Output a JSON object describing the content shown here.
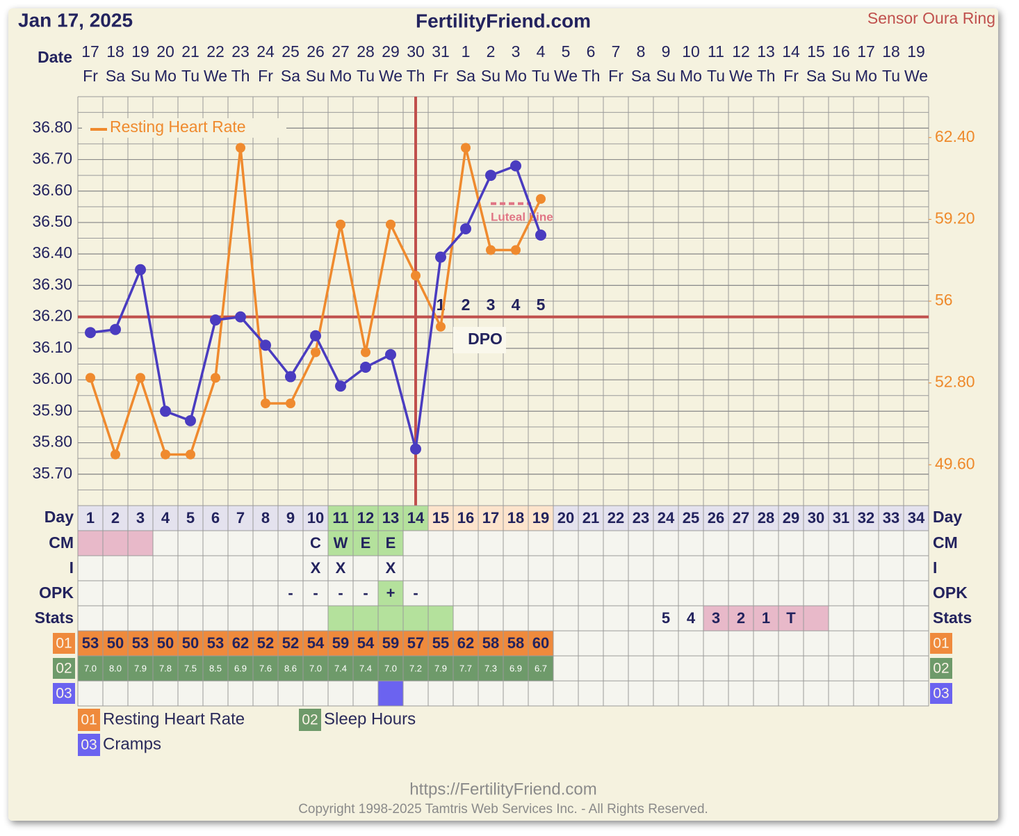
{
  "header": {
    "date": "Jan 17, 2025",
    "site": "FertilityFriend.com",
    "sensor": "Sensor Oura Ring"
  },
  "chart_data": {
    "type": "line",
    "date_label": "Date",
    "categories": [
      "17",
      "18",
      "19",
      "20",
      "21",
      "22",
      "23",
      "24",
      "25",
      "26",
      "27",
      "28",
      "29",
      "30",
      "31",
      "1",
      "2",
      "3",
      "4",
      "5",
      "6",
      "7",
      "8",
      "9",
      "10",
      "11",
      "12",
      "13",
      "14",
      "15",
      "16",
      "17",
      "18",
      "19"
    ],
    "weekdays": [
      "Fr",
      "Sa",
      "Su",
      "Mo",
      "Tu",
      "We",
      "Th",
      "Fr",
      "Sa",
      "Su",
      "Mo",
      "Tu",
      "We",
      "Th",
      "Fr",
      "Sa",
      "Su",
      "Mo",
      "Tu",
      "We",
      "Th",
      "Fr",
      "Sa",
      "Su",
      "Mo",
      "Tu",
      "We",
      "Th",
      "Fr",
      "Sa",
      "Su",
      "Mo",
      "Tu",
      "We"
    ],
    "ylim": [
      35.6,
      36.9
    ],
    "yticks": [
      {
        "value": 35.7,
        "label": "35.70"
      },
      {
        "value": 35.8,
        "label": "35.80"
      },
      {
        "value": 35.9,
        "label": "35.90"
      },
      {
        "value": 36.0,
        "label": "36.00"
      },
      {
        "value": 36.1,
        "label": "36.10"
      },
      {
        "value": 36.2,
        "label": "36.20"
      },
      {
        "value": 36.3,
        "label": "36.30"
      },
      {
        "value": 36.4,
        "label": "36.40"
      },
      {
        "value": 36.5,
        "label": "36.50"
      },
      {
        "value": 36.6,
        "label": "36.60"
      },
      {
        "value": 36.7,
        "label": "36.70"
      },
      {
        "value": 36.8,
        "label": "36.80"
      }
    ],
    "y2lim": [
      48,
      64
    ],
    "y2ticks": [
      {
        "value": 49.6,
        "label": "49.60"
      },
      {
        "value": 52.8,
        "label": "52.80"
      },
      56,
      {
        "value": 59.2,
        "label": "59.20"
      },
      {
        "value": 62.4,
        "label": "62.40"
      }
    ],
    "grid": true,
    "series": [
      {
        "color": "#4a3cc0",
        "values": [
          36.15,
          36.16,
          36.35,
          35.9,
          35.87,
          36.19,
          36.2,
          36.11,
          36.01,
          36.14,
          35.98,
          36.04,
          36.08,
          35.78,
          36.39,
          36.48,
          36.65,
          36.68,
          36.46,
          null,
          null,
          null,
          null,
          null,
          null,
          null,
          null,
          null,
          null,
          null,
          null,
          null,
          null,
          null
        ]
      },
      {
        "name": "Resting Heart Rate",
        "color": "#ef8a2e",
        "axis": "y2",
        "values": [
          53,
          50,
          53,
          50,
          50,
          53,
          62,
          52,
          52,
          54,
          59,
          54,
          59,
          57,
          55,
          62,
          58,
          58,
          60,
          null,
          null,
          null,
          null,
          null,
          null,
          null,
          null,
          null,
          null,
          null,
          null,
          null,
          null,
          null
        ]
      }
    ],
    "coverline": 36.2,
    "coverline_color": "#c0504d",
    "ovulation_day": 14,
    "luteal_line": {
      "label": "Luteal Line",
      "value": 36.56,
      "days": [
        17,
        18
      ],
      "color": "#e07585"
    },
    "dpo": {
      "label": "DPO",
      "days": [
        15,
        16,
        17,
        18,
        19
      ],
      "values": [
        1,
        2,
        3,
        4,
        5
      ]
    }
  },
  "table": {
    "day_label": "Day",
    "days": [
      1,
      2,
      3,
      4,
      5,
      6,
      7,
      8,
      9,
      10,
      11,
      12,
      13,
      14,
      15,
      16,
      17,
      18,
      19,
      20,
      21,
      22,
      23,
      24,
      25,
      26,
      27,
      28,
      29,
      30,
      31,
      32,
      33,
      34
    ],
    "day_fills": [
      {
        "from": 1,
        "to": 10,
        "color": "#e4e2ee"
      },
      {
        "from": 11,
        "to": 14,
        "color": "#b4e19c"
      },
      {
        "from": 15,
        "to": 19,
        "color": "#fde4cc"
      },
      {
        "from": 20,
        "to": 34,
        "color": "#e4e2ee"
      }
    ],
    "rows": [
      {
        "label": "CM",
        "cells": [
          null,
          null,
          null,
          null,
          null,
          null,
          null,
          null,
          null,
          "C",
          "W",
          "E",
          "E",
          null,
          null,
          null,
          null,
          null,
          null,
          null,
          null,
          null,
          null,
          null,
          null,
          null,
          null,
          null,
          null,
          null,
          null,
          null,
          null,
          null
        ],
        "fills": [
          {
            "from": 1,
            "to": 3,
            "color": "#e8b9c9"
          },
          {
            "from": 11,
            "to": 13,
            "color": "#b4e19c"
          }
        ]
      },
      {
        "label": "I",
        "cells": [
          null,
          null,
          null,
          null,
          null,
          null,
          null,
          null,
          null,
          "X",
          "X",
          null,
          "X",
          null,
          null,
          null,
          null,
          null,
          null,
          null,
          null,
          null,
          null,
          null,
          null,
          null,
          null,
          null,
          null,
          null,
          null,
          null,
          null,
          null
        ],
        "fills": []
      },
      {
        "label": "OPK",
        "cells": [
          null,
          null,
          null,
          null,
          null,
          null,
          null,
          null,
          "-",
          "-",
          "-",
          "-",
          "+",
          "-",
          null,
          null,
          null,
          null,
          null,
          null,
          null,
          null,
          null,
          null,
          null,
          null,
          null,
          null,
          null,
          null,
          null,
          null,
          null,
          null
        ],
        "fills": [
          {
            "from": 13,
            "to": 13,
            "color": "#b4e19c"
          }
        ]
      },
      {
        "label": "Stats",
        "cells": [
          null,
          null,
          null,
          null,
          null,
          null,
          null,
          null,
          null,
          null,
          null,
          null,
          null,
          null,
          null,
          null,
          null,
          null,
          null,
          null,
          null,
          null,
          null,
          "5",
          "4",
          "3",
          "2",
          "1",
          "T",
          null,
          null,
          null,
          null,
          null
        ],
        "fills": [
          {
            "from": 11,
            "to": 15,
            "color": "#b4e19c"
          },
          {
            "from": 26,
            "to": 30,
            "color": "#e8b9c9"
          }
        ]
      },
      {
        "label": "01",
        "label_color": "#ef8a3c",
        "cells": [
          53,
          50,
          53,
          50,
          50,
          53,
          62,
          52,
          52,
          54,
          59,
          54,
          59,
          57,
          55,
          62,
          58,
          58,
          60,
          null,
          null,
          null,
          null,
          null,
          null,
          null,
          null,
          null,
          null,
          null,
          null,
          null,
          null,
          null
        ],
        "fills": [
          {
            "from": 1,
            "to": 19,
            "color": "#ef8a3c"
          }
        ]
      },
      {
        "label": "02",
        "label_color": "#6e9a6a",
        "cells": [
          "7.0",
          "8.0",
          "7.9",
          "7.8",
          "7.5",
          "8.5",
          "6.9",
          "7.6",
          "8.6",
          "7.0",
          "7.4",
          "7.4",
          "7.0",
          "7.2",
          "7.9",
          "7.7",
          "7.3",
          "6.9",
          "6.7",
          null,
          null,
          null,
          null,
          null,
          null,
          null,
          null,
          null,
          null,
          null,
          null,
          null,
          null,
          null
        ],
        "fills": [
          {
            "from": 1,
            "to": 19,
            "color": "#6e9a6a"
          }
        ]
      },
      {
        "label": "03",
        "label_color": "#6b63f0",
        "cells": [],
        "fills": [
          {
            "from": 13,
            "to": 13,
            "color": "#6b63f0"
          }
        ]
      }
    ],
    "legend": [
      {
        "code": "01",
        "label": "Resting Heart Rate",
        "color": "#ef8a3c"
      },
      {
        "code": "02",
        "label": "Sleep Hours",
        "color": "#6e9a6a"
      },
      {
        "code": "03",
        "label": "Cramps",
        "color": "#6b63f0"
      }
    ]
  },
  "footer": {
    "url": "https://FertilityFriend.com",
    "copyright": "Copyright 1998-2025 Tamtris Web Services Inc. - All Rights Reserved."
  }
}
